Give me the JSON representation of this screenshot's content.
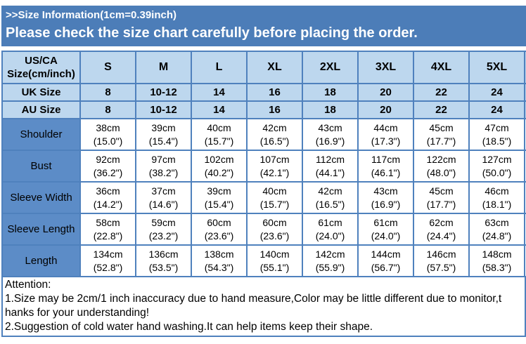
{
  "banner": {
    "title": ">>Size Information(1cm=0.39inch)",
    "subtitle": "Please check the size chart carefully before placing the order."
  },
  "table": {
    "corner_header": [
      "US/CA",
      "Size(cm/inch)"
    ],
    "size_columns": [
      "S",
      "M",
      "L",
      "XL",
      "2XL",
      "3XL",
      "4XL",
      "5XL"
    ],
    "uk_row": {
      "label": "UK Size",
      "values": [
        "8",
        "10-12",
        "14",
        "16",
        "18",
        "20",
        "22",
        "24"
      ]
    },
    "au_row": {
      "label": "AU Size",
      "values": [
        "8",
        "10-12",
        "14",
        "16",
        "18",
        "20",
        "22",
        "24"
      ]
    },
    "measurement_rows": [
      {
        "label": "Shoulder",
        "cm": [
          "38cm",
          "39cm",
          "40cm",
          "42cm",
          "43cm",
          "44cm",
          "45cm",
          "47cm"
        ],
        "inch": [
          "(15.0\")",
          "(15.4\")",
          "(15.7\")",
          "(16.5\")",
          "(16.9\")",
          "(17.3\")",
          "(17.7\")",
          "(18.5\")"
        ]
      },
      {
        "label": "Bust",
        "cm": [
          "92cm",
          "97cm",
          "102cm",
          "107cm",
          "112cm",
          "117cm",
          "122cm",
          "127cm"
        ],
        "inch": [
          "(36.2\")",
          "(38.2\")",
          "(40.2\")",
          "(42.1\")",
          "(44.1\")",
          "(46.1\")",
          "(48.0\")",
          "(50.0\")"
        ]
      },
      {
        "label": "Sleeve Width",
        "cm": [
          "36cm",
          "37cm",
          "39cm",
          "40cm",
          "42cm",
          "43cm",
          "45cm",
          "46cm"
        ],
        "inch": [
          "(14.2\")",
          "(14.6\")",
          "(15.4\")",
          "(15.7\")",
          "(16.5\")",
          "(16.9\")",
          "(17.7\")",
          "(18.1\")"
        ]
      },
      {
        "label": "Sleeve Length",
        "cm": [
          "58cm",
          "59cm",
          "60cm",
          "60cm",
          "61cm",
          "61cm",
          "62cm",
          "63cm"
        ],
        "inch": [
          "(22.8\")",
          "(23.2\")",
          "(23.6\")",
          "(23.6\")",
          "(24.0\")",
          "(24.0\")",
          "(24.4\")",
          "(24.8\")"
        ]
      },
      {
        "label": "Length",
        "cm": [
          "134cm",
          "136cm",
          "138cm",
          "140cm",
          "142cm",
          "144cm",
          "146cm",
          "148cm"
        ],
        "inch": [
          "(52.8\")",
          "(53.5\")",
          "(54.3\")",
          "(55.1\")",
          "(55.9\")",
          "(56.7\")",
          "(57.5\")",
          "(58.3\")"
        ]
      }
    ]
  },
  "attention": {
    "lines": [
      "Attention:",
      "1.Size may be 2cm/1 inch inaccuracy due to hand measure,Color may be little different due to monitor,t",
      "hanks for your understanding!",
      "2.Suggestion of cold water hand washing.It can help items keep their shape."
    ]
  },
  "colors": {
    "banner_blue": "#4C7DB8",
    "header_light_blue": "#BDD7EE",
    "row_label_blue": "#5C8CC7",
    "grid_border_blue": "#4F81BD",
    "banner_text": "#FFFFFF",
    "cell_text": "#000000"
  }
}
